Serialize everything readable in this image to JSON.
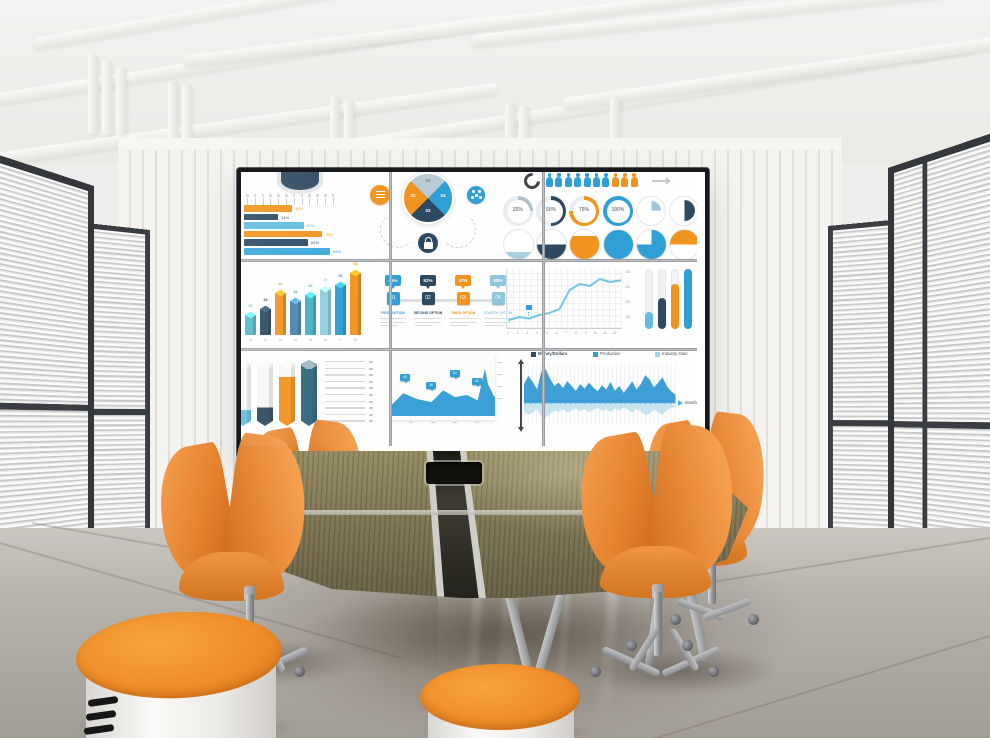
{
  "palette": {
    "orange": "#f0941f",
    "navy": "#2e4a62",
    "blue": "#2f9fd6",
    "lightblue": "#64bce0",
    "paleblue": "#b9ccd6",
    "teal": "#45b1c4",
    "frame_black": "#34373b",
    "wood": "#7d7351",
    "floor_gray": "#b6b2ac"
  },
  "video_wall": {
    "rows": 3,
    "cols": 3
  },
  "chart_data": [
    {
      "id": "horizontal-bars",
      "type": "bar",
      "panel": "top-left",
      "ruler_ticks": 12,
      "values": [
        48,
        34,
        60,
        78,
        64,
        86
      ],
      "labels": [
        "48%",
        "34%",
        "60%",
        "78%",
        "64%",
        "86%"
      ],
      "colors": [
        "#f0941f",
        "#2e4a62",
        "#64bce0",
        "#f0941f",
        "#2e4a62",
        "#3ba8dc"
      ]
    },
    {
      "id": "process-pie",
      "type": "pie",
      "panel": "top-center",
      "slices": [
        {
          "label": "01",
          "value": 25,
          "color": "#b9ccd6"
        },
        {
          "label": "04",
          "value": 25,
          "color": "#2f9fd6"
        },
        {
          "label": "03",
          "value": 25,
          "color": "#2e4a62"
        },
        {
          "label": "02",
          "value": 25,
          "color": "#f0941f"
        }
      ],
      "icons": [
        "document-icon",
        "molecule-icon",
        "lock-icon"
      ]
    },
    {
      "id": "kpi-circles",
      "type": "infographic",
      "panel": "top-right",
      "people": {
        "total": 10,
        "blue": 7,
        "orange": 3
      },
      "rings": [
        {
          "label": "25%",
          "pct": 25,
          "color": "#aebfc9"
        },
        {
          "label": "50%",
          "pct": 50,
          "color": "#2e4a62"
        },
        {
          "label": "75%",
          "pct": 75,
          "color": "#f0941f"
        },
        {
          "label": "100%",
          "pct": 100,
          "color": "#2f9fd6"
        }
      ],
      "shape_circles_row1": [
        "quarter-lightblue",
        "half-right-navy"
      ],
      "shape_circles_row2": [
        "sliver-lightblue",
        "half-bottom-navy",
        "fill-orange",
        "full-blue",
        "three-quarter-blue",
        "dome-orange"
      ]
    },
    {
      "id": "iso-columns",
      "type": "bar",
      "style": "3d-columns",
      "panel": "middle-left",
      "categories": [
        "01",
        "02",
        "03",
        "04",
        "05",
        "06",
        "07",
        "08"
      ],
      "values": [
        20,
        26,
        42,
        34,
        40,
        46,
        50,
        62
      ],
      "labels": [
        "20",
        "26",
        "42",
        "34",
        "40",
        "46",
        "50",
        "62"
      ],
      "colors": [
        "#56b9c9",
        "#2e4a62",
        "#f0941f",
        "#4b87ae",
        "#45b1c4",
        "#8fd0dc",
        "#2f9fd6",
        "#f0941f"
      ]
    },
    {
      "id": "option-timeline",
      "type": "timeline",
      "panel": "middle-center",
      "options": [
        {
          "num": "01",
          "pct": "65%",
          "label": "FIRST OPTION",
          "color": "#2f9fd6"
        },
        {
          "num": "02",
          "pct": "52%",
          "label": "SECOND OPTION",
          "color": "#2e4a62"
        },
        {
          "num": "03",
          "pct": "47%",
          "label": "THIRD OPTION",
          "color": "#f0941f"
        },
        {
          "num": "04",
          "pct": "85%",
          "label": "FOURTH OPTION",
          "color": "#8fc6d8"
        }
      ]
    },
    {
      "id": "trend-line",
      "type": "line",
      "panel": "middle-right",
      "x_ticks": [
        "1",
        "2",
        "3",
        "4",
        "5",
        "6",
        "7",
        "8",
        "9",
        "10",
        "11",
        "12"
      ],
      "y_ticks": [
        "400",
        "300",
        "200",
        "100"
      ],
      "values": [
        12,
        18,
        15,
        22,
        26,
        34,
        72,
        84,
        80,
        94,
        88,
        91
      ],
      "line_color": "#74c6e4",
      "side_bars": [
        {
          "pct": 28,
          "color": "#64bce0"
        },
        {
          "pct": 52,
          "color": "#2e4a62"
        },
        {
          "pct": 75,
          "color": "#f0941f"
        },
        {
          "pct": 100,
          "color": "#2f9fd6"
        }
      ]
    },
    {
      "id": "prism-gauges",
      "type": "bar",
      "style": "3d-prisms",
      "panel": "bottom-left",
      "values": [
        24,
        28,
        74,
        100
      ],
      "colors": [
        "#64bce0",
        "#2e4a62",
        "#f0941f",
        "#33677f"
      ],
      "list_lines": 10
    },
    {
      "id": "area-trend",
      "type": "area",
      "panel": "bottom-center",
      "color": "#3aa0d6",
      "path_points": [
        [
          0,
          50
        ],
        [
          12,
          38
        ],
        [
          26,
          44
        ],
        [
          40,
          47
        ],
        [
          52,
          35
        ],
        [
          64,
          42
        ],
        [
          76,
          40
        ],
        [
          86,
          45
        ],
        [
          94,
          10
        ],
        [
          98,
          30
        ],
        [
          104,
          42
        ]
      ],
      "markers": [
        {
          "x": 14,
          "y": 24,
          "label": "45"
        },
        {
          "x": 40,
          "y": 32,
          "label": "38"
        },
        {
          "x": 64,
          "y": 20,
          "label": "62"
        },
        {
          "x": 86,
          "y": 28,
          "label": "50"
        }
      ],
      "x_tick_count": 4,
      "y_tick_count": 4
    },
    {
      "id": "production-waveform",
      "type": "area",
      "style": "mirrored-waveform",
      "panel": "bottom-right",
      "legend": [
        {
          "label": "Money/Dollars",
          "color": "#2e4a62"
        },
        {
          "label": "Production",
          "color": "#2f9fd6"
        },
        {
          "label": "Industry Gain",
          "color": "#a9d3e8"
        }
      ],
      "axis_label": "Months",
      "amplitudes": [
        0.55,
        0.8,
        0.62,
        0.4,
        0.92,
        1,
        0.72,
        0.5,
        0.6,
        0.44,
        0.64,
        0.5,
        0.36,
        0.56,
        0.42,
        0.6,
        0.46,
        0.34,
        0.52,
        0.4,
        0.62,
        0.36,
        0.5,
        0.3,
        0.46,
        0.64,
        0.4,
        0.56,
        0.82,
        0.7,
        0.46,
        0.6,
        0.76,
        0.5,
        0.34,
        0.24
      ]
    }
  ]
}
